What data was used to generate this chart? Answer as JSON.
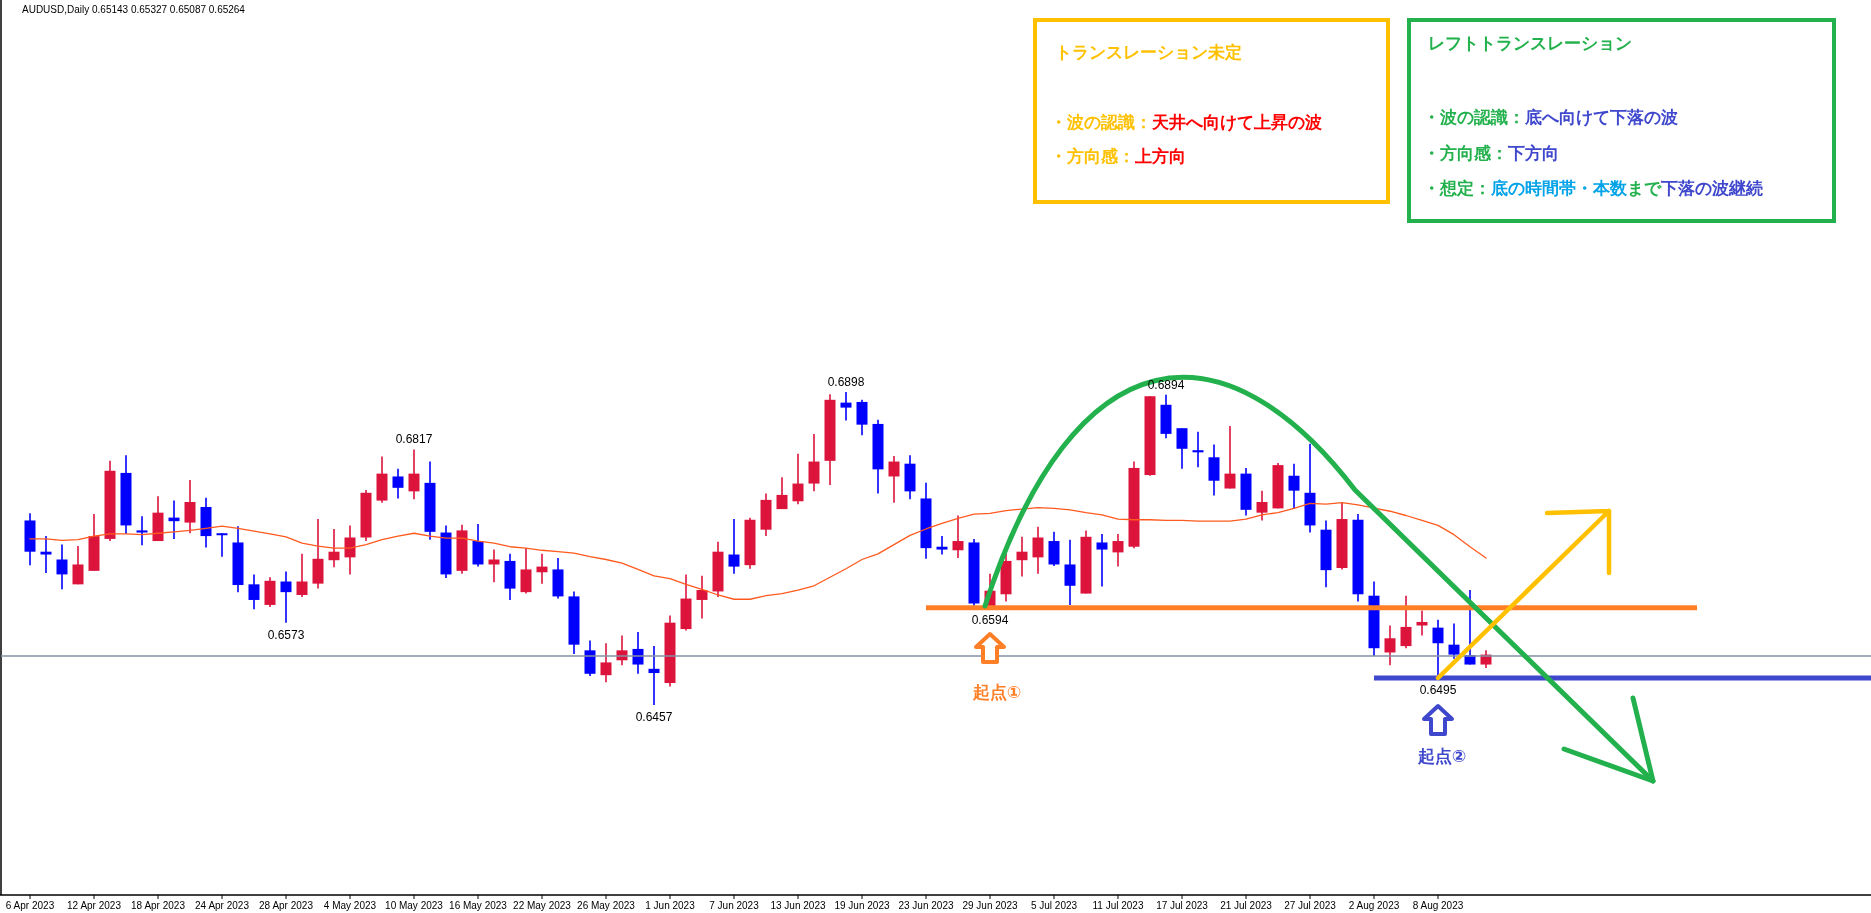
{
  "chart_data": {
    "type": "candlestick",
    "tick_labels": "x",
    "categories": [
      "6 Apr 2023",
      null,
      null,
      null,
      "12 Apr 2023",
      null,
      null,
      null,
      "18 Apr 2023",
      null,
      null,
      null,
      "24 Apr 2023",
      null,
      null,
      null,
      "28 Apr 2023",
      null,
      null,
      null,
      "4 May 2023",
      null,
      null,
      null,
      "10 May 2023",
      null,
      null,
      null,
      "16 May 2023",
      null,
      null,
      null,
      "22 May 2023",
      null,
      null,
      null,
      "26 May 2023",
      null,
      null,
      null,
      "1 Jun 2023",
      null,
      null,
      null,
      "7 Jun 2023",
      null,
      null,
      null,
      "13 Jun 2023",
      null,
      null,
      null,
      "19 Jun 2023",
      null,
      null,
      null,
      "23 Jun 2023",
      null,
      null,
      null,
      "29 Jun 2023",
      null,
      null,
      null,
      "5 Jul 2023",
      null,
      null,
      null,
      "11 Jul 2023",
      null,
      null,
      null,
      "17 Jul 2023",
      null,
      null,
      null,
      "21 Jul 2023",
      null,
      null,
      null,
      "27 Jul 2023",
      null,
      null,
      null,
      "2 Aug 2023",
      null,
      null,
      null,
      "8 Aug 2023",
      null,
      null,
      null
    ],
    "ohlc": [
      [
        0.6717,
        0.6727,
        0.6654,
        0.6673
      ],
      [
        0.6673,
        0.6695,
        0.6643,
        0.6669
      ],
      [
        0.6662,
        0.6683,
        0.662,
        0.6641
      ],
      [
        0.6627,
        0.6681,
        0.6627,
        0.6655
      ],
      [
        0.6646,
        0.6726,
        0.6646,
        0.6695
      ],
      [
        0.6691,
        0.6801,
        0.6688,
        0.6787
      ],
      [
        0.6784,
        0.6809,
        0.6698,
        0.671
      ],
      [
        0.6703,
        0.6723,
        0.6682,
        0.67
      ],
      [
        0.6688,
        0.6751,
        0.6688,
        0.6728
      ],
      [
        0.6721,
        0.6745,
        0.6691,
        0.6716
      ],
      [
        0.6714,
        0.6774,
        0.6699,
        0.6743
      ],
      [
        0.6736,
        0.6749,
        0.6679,
        0.6695
      ],
      [
        0.6699,
        0.6699,
        0.6666,
        0.6697
      ],
      [
        0.6686,
        0.6709,
        0.6616,
        0.6626
      ],
      [
        0.6627,
        0.6641,
        0.6592,
        0.6605
      ],
      [
        0.6598,
        0.6637,
        0.6595,
        0.6632
      ],
      [
        0.6631,
        0.6645,
        0.6573,
        0.6616
      ],
      [
        0.6612,
        0.667,
        0.6609,
        0.6631
      ],
      [
        0.6628,
        0.6719,
        0.6621,
        0.6663
      ],
      [
        0.6661,
        0.6705,
        0.6651,
        0.6673
      ],
      [
        0.6665,
        0.671,
        0.6641,
        0.6693
      ],
      [
        0.6693,
        0.676,
        0.6688,
        0.6756
      ],
      [
        0.6745,
        0.6807,
        0.6742,
        0.6783
      ],
      [
        0.6779,
        0.679,
        0.6748,
        0.6763
      ],
      [
        0.6758,
        0.6817,
        0.6747,
        0.6783
      ],
      [
        0.677,
        0.68,
        0.669,
        0.6701
      ],
      [
        0.67,
        0.671,
        0.6636,
        0.6641
      ],
      [
        0.6646,
        0.6711,
        0.6642,
        0.6703
      ],
      [
        0.6688,
        0.6712,
        0.6652,
        0.6655
      ],
      [
        0.6655,
        0.6676,
        0.663,
        0.6662
      ],
      [
        0.666,
        0.667,
        0.6605,
        0.6621
      ],
      [
        0.6616,
        0.6678,
        0.6614,
        0.6648
      ],
      [
        0.6644,
        0.667,
        0.6628,
        0.6652
      ],
      [
        0.6648,
        0.6664,
        0.6607,
        0.661
      ],
      [
        0.661,
        0.6617,
        0.6529,
        0.6542
      ],
      [
        0.6534,
        0.6548,
        0.6498,
        0.6501
      ],
      [
        0.6499,
        0.6544,
        0.6489,
        0.6517
      ],
      [
        0.652,
        0.6555,
        0.6513,
        0.6534
      ],
      [
        0.6536,
        0.656,
        0.6501,
        0.6514
      ],
      [
        0.6508,
        0.654,
        0.6457,
        0.6502
      ],
      [
        0.6488,
        0.6583,
        0.6483,
        0.6573
      ],
      [
        0.6564,
        0.6641,
        0.6562,
        0.6607
      ],
      [
        0.6605,
        0.6639,
        0.6579,
        0.6619
      ],
      [
        0.6617,
        0.6687,
        0.6609,
        0.6673
      ],
      [
        0.6669,
        0.6719,
        0.6642,
        0.6652
      ],
      [
        0.6654,
        0.6721,
        0.6649,
        0.6718
      ],
      [
        0.6704,
        0.6755,
        0.6695,
        0.6746
      ],
      [
        0.6733,
        0.6778,
        0.6733,
        0.6753
      ],
      [
        0.6744,
        0.6811,
        0.674,
        0.6769
      ],
      [
        0.6769,
        0.6839,
        0.6758,
        0.68
      ],
      [
        0.6801,
        0.6895,
        0.6767,
        0.6887
      ],
      [
        0.6883,
        0.6898,
        0.6858,
        0.6876
      ],
      [
        0.6884,
        0.6887,
        0.6837,
        0.6852
      ],
      [
        0.6853,
        0.6859,
        0.6755,
        0.6789
      ],
      [
        0.6779,
        0.6808,
        0.6742,
        0.68
      ],
      [
        0.6797,
        0.6809,
        0.6747,
        0.6758
      ],
      [
        0.6748,
        0.677,
        0.6663,
        0.6678
      ],
      [
        0.668,
        0.6695,
        0.6669,
        0.6676
      ],
      [
        0.6675,
        0.6724,
        0.6664,
        0.6688
      ],
      [
        0.6686,
        0.6691,
        0.6597,
        0.66
      ],
      [
        0.6596,
        0.6642,
        0.6594,
        0.6618
      ],
      [
        0.6613,
        0.6673,
        0.6603,
        0.666
      ],
      [
        0.6661,
        0.6694,
        0.6638,
        0.6673
      ],
      [
        0.6665,
        0.6708,
        0.6642,
        0.6693
      ],
      [
        0.6688,
        0.6701,
        0.6653,
        0.6655
      ],
      [
        0.6655,
        0.669,
        0.6598,
        0.6625
      ],
      [
        0.6614,
        0.6703,
        0.6614,
        0.6694
      ],
      [
        0.6686,
        0.6698,
        0.6624,
        0.6676
      ],
      [
        0.6672,
        0.6698,
        0.6652,
        0.6688
      ],
      [
        0.668,
        0.68,
        0.6678,
        0.6791
      ],
      [
        0.6781,
        0.6892,
        0.678,
        0.6892
      ],
      [
        0.688,
        0.6894,
        0.6833,
        0.6839
      ],
      [
        0.6847,
        0.6847,
        0.679,
        0.6818
      ],
      [
        0.6816,
        0.6842,
        0.6792,
        0.6813
      ],
      [
        0.6806,
        0.6824,
        0.6752,
        0.6773
      ],
      [
        0.6762,
        0.685,
        0.6762,
        0.6783
      ],
      [
        0.6783,
        0.6791,
        0.6724,
        0.6732
      ],
      [
        0.6728,
        0.6759,
        0.6717,
        0.6743
      ],
      [
        0.6734,
        0.6798,
        0.6734,
        0.6795
      ],
      [
        0.678,
        0.6797,
        0.6733,
        0.6759
      ],
      [
        0.6756,
        0.6825,
        0.67,
        0.671
      ],
      [
        0.6704,
        0.6717,
        0.6623,
        0.6647
      ],
      [
        0.665,
        0.6742,
        0.6648,
        0.6719
      ],
      [
        0.6718,
        0.6726,
        0.6603,
        0.6613
      ],
      [
        0.6611,
        0.6631,
        0.6526,
        0.6537
      ],
      [
        0.6531,
        0.6569,
        0.6513,
        0.6551
      ],
      [
        0.654,
        0.6611,
        0.6537,
        0.6567
      ],
      [
        0.6569,
        0.659,
        0.6555,
        0.6574
      ],
      [
        0.6566,
        0.6577,
        0.6495,
        0.6544
      ],
      [
        0.6542,
        0.6572,
        0.6522,
        0.6528
      ],
      [
        0.6527,
        0.6619,
        0.6514,
        0.6514
      ],
      [
        0.6514,
        0.6534,
        0.6509,
        0.6528
      ]
    ],
    "colors": [
      "#0000ff",
      "#0000ff",
      "#0000ff",
      "#dc143c",
      "#dc143c",
      "#dc143c",
      "#0000ff",
      "#0000ff",
      "#dc143c",
      "#0000ff",
      "#dc143c",
      "#0000ff",
      "#0000ff",
      "#0000ff",
      "#0000ff",
      "#dc143c",
      "#0000ff",
      "#dc143c",
      "#dc143c",
      "#dc143c",
      "#dc143c",
      "#dc143c",
      "#dc143c",
      "#0000ff",
      "#dc143c",
      "#0000ff",
      "#0000ff",
      "#dc143c",
      "#0000ff",
      "#dc143c",
      "#0000ff",
      "#dc143c",
      "#dc143c",
      "#0000ff",
      "#0000ff",
      "#0000ff",
      "#dc143c",
      "#dc143c",
      "#0000ff",
      "#0000ff",
      "#dc143c",
      "#dc143c",
      "#dc143c",
      "#dc143c",
      "#0000ff",
      "#dc143c",
      "#dc143c",
      "#dc143c",
      "#dc143c",
      "#dc143c",
      "#dc143c",
      "#0000ff",
      "#0000ff",
      "#0000ff",
      "#dc143c",
      "#0000ff",
      "#0000ff",
      "#0000ff",
      "#dc143c",
      "#0000ff",
      "#dc143c",
      "#dc143c",
      "#dc143c",
      "#dc143c",
      "#0000ff",
      "#0000ff",
      "#dc143c",
      "#0000ff",
      "#dc143c",
      "#dc143c",
      "#dc143c",
      "#0000ff",
      "#0000ff",
      "#0000ff",
      "#0000ff",
      "#dc143c",
      "#0000ff",
      "#dc143c",
      "#dc143c",
      "#0000ff",
      "#0000ff",
      "#0000ff",
      "#dc143c",
      "#0000ff",
      "#0000ff",
      "#dc143c",
      "#dc143c",
      "#dc143c",
      "#0000ff",
      "#0000ff",
      "#0000ff",
      "#dc143c"
    ],
    "series": [
      {
        "type": "line",
        "color": "#ff5a1e",
        "values": [
          0.6691,
          0.6691,
          0.6689,
          0.669,
          0.6695,
          0.6698,
          0.6698,
          0.6697,
          0.6699,
          0.6701,
          0.6703,
          0.6706,
          0.6709,
          0.6706,
          0.6702,
          0.6698,
          0.6694,
          0.6685,
          0.6681,
          0.6678,
          0.6678,
          0.6683,
          0.669,
          0.6695,
          0.6699,
          0.6695,
          0.6692,
          0.6692,
          0.6688,
          0.6685,
          0.668,
          0.6678,
          0.6675,
          0.6673,
          0.6671,
          0.6666,
          0.6662,
          0.6657,
          0.6648,
          0.6639,
          0.6635,
          0.6627,
          0.662,
          0.6612,
          0.6606,
          0.6606,
          0.6611,
          0.6614,
          0.6619,
          0.6625,
          0.6637,
          0.6649,
          0.6662,
          0.667,
          0.6683,
          0.6696,
          0.6705,
          0.6713,
          0.672,
          0.6726,
          0.6727,
          0.6731,
          0.6733,
          0.6735,
          0.6734,
          0.6732,
          0.6728,
          0.6725,
          0.6719,
          0.6718,
          0.6718,
          0.6717,
          0.6717,
          0.6716,
          0.6716,
          0.6716,
          0.6719,
          0.6725,
          0.6728,
          0.6734,
          0.6741,
          0.674,
          0.6742,
          0.6739,
          null,
          0.673,
          0.6724,
          0.6717,
          0.671,
          0.6697,
          0.668,
          0.6664
        ]
      }
    ],
    "ref_lines": [
      {
        "axis": "y",
        "value": 0.6594,
        "color": "#ff7f27"
      },
      {
        "axis": "y",
        "value": 0.6495,
        "color": "#3f48cc"
      },
      {
        "axis": "y",
        "value": 0.6526,
        "color": "#8391a5"
      }
    ],
    "annotations": [
      "トランスレーション未定",
      "・波の認識：",
      "天井へ向けて上昇の波",
      "・方向感：",
      "上方向",
      "レフトトランスレーション",
      "・波の認識：",
      "底へ向けて下落の波",
      "・方向感：",
      "下方向",
      "・想定：",
      "底の時間帯・本数",
      "まで",
      "下落の波継続",
      "起点①",
      "起点②",
      "AUDUSD,Daily  0.65143 0.65327 0.65087 0.65264",
      {
        "text": "0.6573",
        "y": 0.6573
      },
      {
        "text": "0.6817",
        "y": 0.6817
      },
      {
        "text": "0.6457",
        "y": 0.6457
      },
      {
        "text": "0.6898",
        "y": 0.6898
      },
      {
        "text": "0.6594",
        "y": 0.6594
      },
      {
        "text": "0.6894",
        "y": 0.6894
      },
      {
        "text": "0.6495",
        "y": 0.6495
      }
    ]
  }
}
